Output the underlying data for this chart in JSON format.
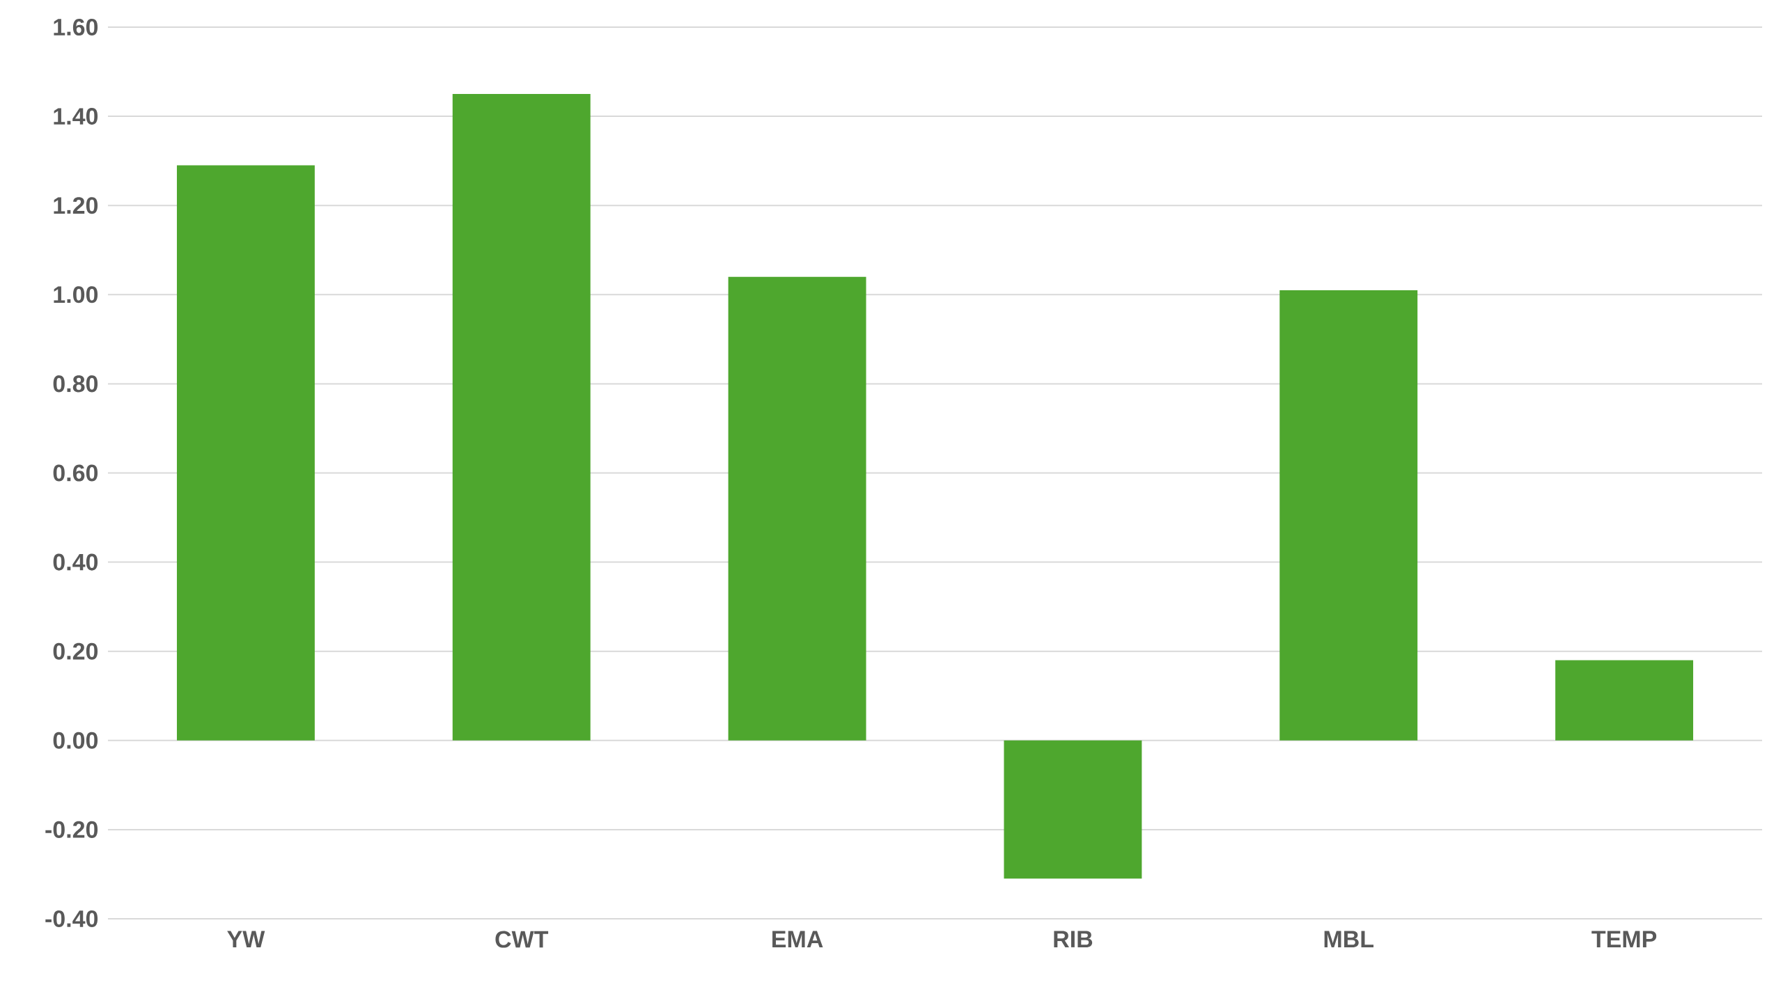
{
  "chart_data": {
    "type": "bar",
    "categories": [
      "YW",
      "CWT",
      "EMA",
      "RIB",
      "MBL",
      "TEMP"
    ],
    "values": [
      1.29,
      1.45,
      1.04,
      -0.31,
      1.01,
      0.18
    ],
    "color": "#4ea72e",
    "ylim": [
      -0.4,
      1.6
    ],
    "yticks": [
      {
        "value": -0.4,
        "label": "-0.40"
      },
      {
        "value": -0.2,
        "label": "-0.20"
      },
      {
        "value": 0,
        "label": "0.00"
      },
      {
        "value": 0.2,
        "label": "0.20"
      },
      {
        "value": 0.4,
        "label": "0.40"
      },
      {
        "value": 0.6,
        "label": "0.60"
      },
      {
        "value": 0.8,
        "label": "0.80"
      },
      {
        "value": 1.0,
        "label": "1.00"
      },
      {
        "value": 1.2,
        "label": "1.20"
      },
      {
        "value": 1.4,
        "label": "1.40"
      },
      {
        "value": 1.6,
        "label": "1.60"
      }
    ],
    "grid": "y"
  }
}
